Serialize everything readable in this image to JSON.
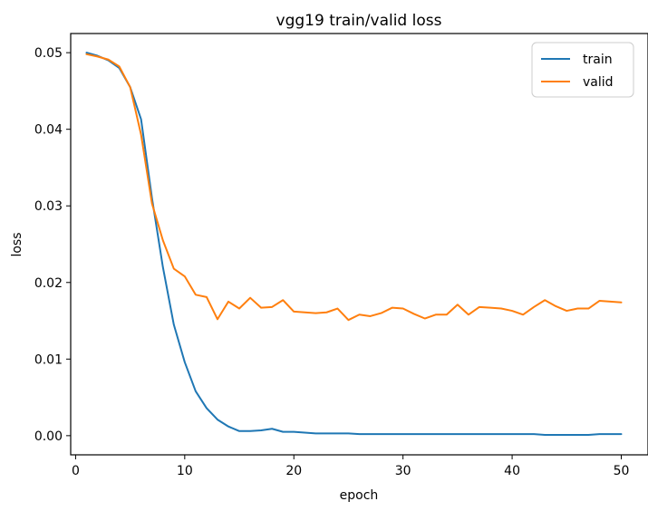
{
  "chart_data": {
    "type": "line",
    "title": "vgg19 train/valid loss",
    "xlabel": "epoch",
    "ylabel": "loss",
    "xlim": [
      -0.45,
      52.45
    ],
    "ylim": [
      -0.0025,
      0.0525
    ],
    "xticks": [
      0,
      10,
      20,
      30,
      40,
      50
    ],
    "yticks": [
      0.0,
      0.01,
      0.02,
      0.03,
      0.04,
      0.05
    ],
    "ytick_labels": [
      "0.00",
      "0.01",
      "0.02",
      "0.03",
      "0.04",
      "0.05"
    ],
    "grid": false,
    "legend_position": "upper right",
    "x": [
      1,
      2,
      3,
      4,
      5,
      6,
      7,
      8,
      9,
      10,
      11,
      12,
      13,
      14,
      15,
      16,
      17,
      18,
      19,
      20,
      21,
      22,
      23,
      24,
      25,
      26,
      27,
      28,
      29,
      30,
      31,
      32,
      33,
      34,
      35,
      36,
      37,
      38,
      39,
      40,
      41,
      42,
      43,
      44,
      45,
      46,
      47,
      48,
      49,
      50
    ],
    "series": [
      {
        "name": "train",
        "color": "#1f77b4",
        "values": [
          0.05,
          0.0496,
          0.049,
          0.048,
          0.0455,
          0.0413,
          0.031,
          0.022,
          0.0145,
          0.0096,
          0.0058,
          0.0036,
          0.0021,
          0.0012,
          0.0006,
          0.0006,
          0.0007,
          0.0009,
          0.0005,
          0.0005,
          0.0004,
          0.0003,
          0.0003,
          0.0003,
          0.0003,
          0.0002,
          0.0002,
          0.0002,
          0.0002,
          0.0002,
          0.0002,
          0.0002,
          0.0002,
          0.0002,
          0.0002,
          0.0002,
          0.0002,
          0.0002,
          0.0002,
          0.0002,
          0.0002,
          0.0002,
          0.0001,
          0.0001,
          0.0001,
          0.0001,
          0.0001,
          0.0002,
          0.0002,
          0.0002
        ]
      },
      {
        "name": "valid",
        "color": "#ff7f0e",
        "values": [
          0.0498,
          0.0495,
          0.0491,
          0.0482,
          0.0455,
          0.0393,
          0.0303,
          0.0255,
          0.0218,
          0.0208,
          0.0184,
          0.0181,
          0.0152,
          0.0175,
          0.0166,
          0.018,
          0.0167,
          0.0168,
          0.0177,
          0.0162,
          0.0161,
          0.016,
          0.0161,
          0.0166,
          0.0151,
          0.0158,
          0.0156,
          0.016,
          0.0167,
          0.0166,
          0.0159,
          0.0153,
          0.0158,
          0.0158,
          0.0171,
          0.0158,
          0.0168,
          0.0167,
          0.0166,
          0.0163,
          0.0158,
          0.0168,
          0.0177,
          0.0169,
          0.0163,
          0.0166,
          0.0166,
          0.0176,
          0.0175,
          0.0174
        ]
      }
    ]
  }
}
